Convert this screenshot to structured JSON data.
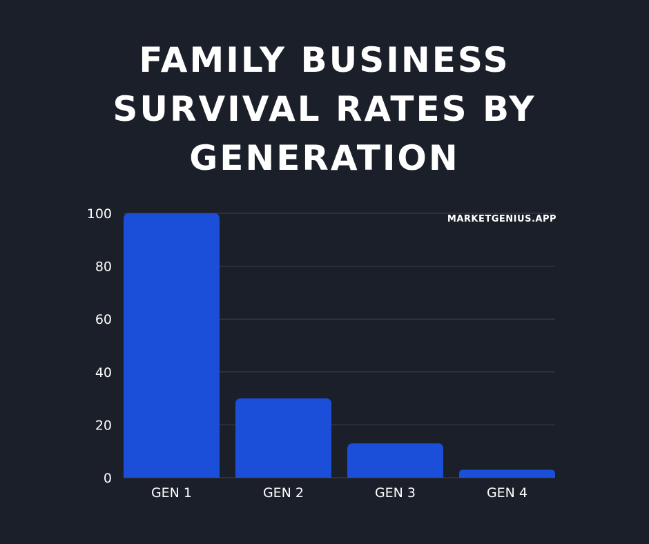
{
  "title_lines": [
    "FAMILY BUSINESS",
    "SURVIVAL RATES BY",
    "GENERATION"
  ],
  "watermark": "MARKETGENIUS.APP",
  "colors": {
    "background": "#1b1f29",
    "bar": "#1c4fd9",
    "grid": "#3d4352",
    "text": "#ffffff"
  },
  "chart_data": {
    "type": "bar",
    "title": "FAMILY BUSINESS SURVIVAL RATES BY GENERATION",
    "categories": [
      "GEN 1",
      "GEN 2",
      "GEN 3",
      "GEN 4"
    ],
    "values": [
      100,
      30,
      13,
      3
    ],
    "ylim": [
      0,
      100
    ],
    "yticks": [
      0,
      20,
      40,
      60,
      80,
      100
    ],
    "xlabel": "",
    "ylabel": "",
    "grid": true
  }
}
